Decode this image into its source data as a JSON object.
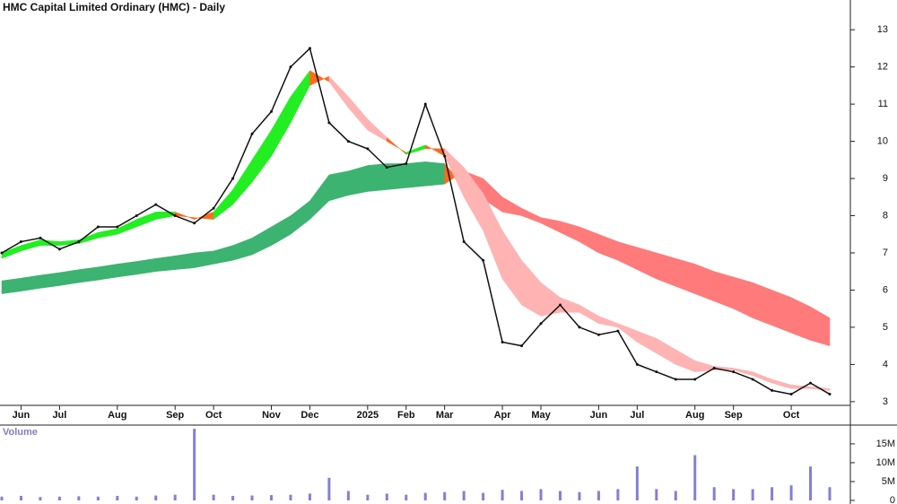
{
  "chart_data": [
    {
      "type": "line",
      "title": "HMC Capital Limited Ordinary (HMC) - Daily",
      "color": "#111111",
      "categories": [
        null,
        "Jun",
        null,
        "Jul",
        null,
        null,
        "Aug",
        null,
        null,
        "Sep",
        null,
        "Oct",
        null,
        null,
        "Nov",
        null,
        "Dec",
        null,
        null,
        "2025",
        null,
        "Feb",
        null,
        "Mar",
        null,
        null,
        "Apr",
        null,
        "May",
        null,
        null,
        "Jun",
        null,
        "Jul",
        null,
        null,
        "Aug",
        null,
        "Sep",
        null,
        null,
        "Oct",
        null,
        null
      ],
      "values": [
        7.0,
        7.3,
        7.4,
        7.1,
        7.3,
        7.7,
        7.7,
        8.0,
        8.3,
        8.0,
        7.8,
        8.2,
        9.0,
        10.2,
        10.8,
        12.0,
        12.5,
        10.5,
        10.0,
        9.8,
        9.3,
        9.4,
        11.0,
        9.6,
        7.3,
        6.8,
        4.6,
        4.5,
        5.1,
        5.6,
        5.0,
        4.8,
        4.9,
        4.0,
        3.8,
        3.6,
        3.6,
        3.9,
        3.8,
        3.6,
        3.3,
        3.2,
        3.5,
        3.2
      ],
      "ribbons": [
        {
          "up_color": "#3cb371",
          "down_color": "#ff7a7a",
          "cross_color": "#ff6a1a",
          "a": [
            6.25,
            6.32,
            6.4,
            6.47,
            6.55,
            6.62,
            6.7,
            6.77,
            6.85,
            6.92,
            7.0,
            7.05,
            7.2,
            7.4,
            7.7,
            8.0,
            8.4,
            9.1,
            9.2,
            9.35,
            9.4,
            9.4,
            9.45,
            9.4,
            8.8,
            8.45,
            8.1,
            8.0,
            7.8,
            7.55,
            7.3,
            7.0,
            6.8,
            6.55,
            6.3,
            6.1,
            5.9,
            5.7,
            5.5,
            5.25,
            5.05,
            4.85,
            4.65,
            4.5
          ],
          "b": [
            5.9,
            5.97,
            6.05,
            6.12,
            6.2,
            6.27,
            6.35,
            6.42,
            6.5,
            6.55,
            6.6,
            6.7,
            6.8,
            6.95,
            7.2,
            7.5,
            7.9,
            8.4,
            8.55,
            8.65,
            8.7,
            8.75,
            8.8,
            8.85,
            9.2,
            9.0,
            8.5,
            8.2,
            7.95,
            7.85,
            7.7,
            7.5,
            7.3,
            7.15,
            7.0,
            6.85,
            6.7,
            6.5,
            6.35,
            6.2,
            6.0,
            5.8,
            5.55,
            5.25
          ]
        },
        {
          "up_color": "#22ee22",
          "down_color": "#ffb3b3",
          "cross_color": "#ff6a1a",
          "a": [
            7.0,
            7.2,
            7.35,
            7.3,
            7.35,
            7.55,
            7.65,
            7.9,
            8.1,
            8.1,
            7.9,
            8.1,
            8.7,
            9.5,
            10.3,
            11.2,
            11.9,
            11.6,
            10.9,
            10.3,
            10.0,
            9.7,
            9.9,
            9.6,
            8.5,
            7.6,
            6.3,
            5.6,
            5.3,
            5.4,
            5.4,
            5.1,
            5.0,
            4.6,
            4.3,
            4.0,
            3.8,
            3.85,
            3.85,
            3.7,
            3.5,
            3.35,
            3.35,
            3.3
          ],
          "b": [
            6.85,
            7.05,
            7.2,
            7.2,
            7.25,
            7.4,
            7.5,
            7.7,
            7.9,
            8.0,
            7.95,
            7.9,
            8.3,
            8.9,
            9.6,
            10.5,
            11.5,
            11.75,
            11.2,
            10.6,
            10.1,
            9.65,
            9.8,
            9.8,
            9.3,
            8.6,
            7.6,
            6.8,
            6.2,
            5.8,
            5.6,
            5.3,
            5.1,
            4.9,
            4.7,
            4.4,
            4.1,
            3.95,
            3.9,
            3.8,
            3.6,
            3.45,
            3.4,
            3.35
          ]
        }
      ],
      "ylim": [
        2.9,
        13.8
      ],
      "yticks": [
        3,
        4,
        5,
        6,
        7,
        8,
        9,
        10,
        11,
        12,
        13
      ]
    },
    {
      "type": "bar",
      "title": "Volume",
      "color": "#8080d8",
      "values": [
        1000000,
        1200000,
        900000,
        1000000,
        1100000,
        1000000,
        1200000,
        1000000,
        1300000,
        1500000,
        19000000,
        1500000,
        1200000,
        1300000,
        1400000,
        1500000,
        1800000,
        6000000,
        2500000,
        1500000,
        1800000,
        1500000,
        2000000,
        2200000,
        2500000,
        2000000,
        2800000,
        2500000,
        3000000,
        2500000,
        2200000,
        2500000,
        3000000,
        9000000,
        3000000,
        2500000,
        12000000,
        3500000,
        3000000,
        3000000,
        3500000,
        4000000,
        9000000,
        3500000
      ],
      "ylim": [
        0,
        19500000
      ],
      "yticks": [
        {
          "value": 0,
          "label": "0"
        },
        {
          "value": 5000000,
          "label": "5M"
        },
        {
          "value": 10000000,
          "label": "10M"
        },
        {
          "value": 15000000,
          "label": "15M"
        }
      ]
    }
  ]
}
